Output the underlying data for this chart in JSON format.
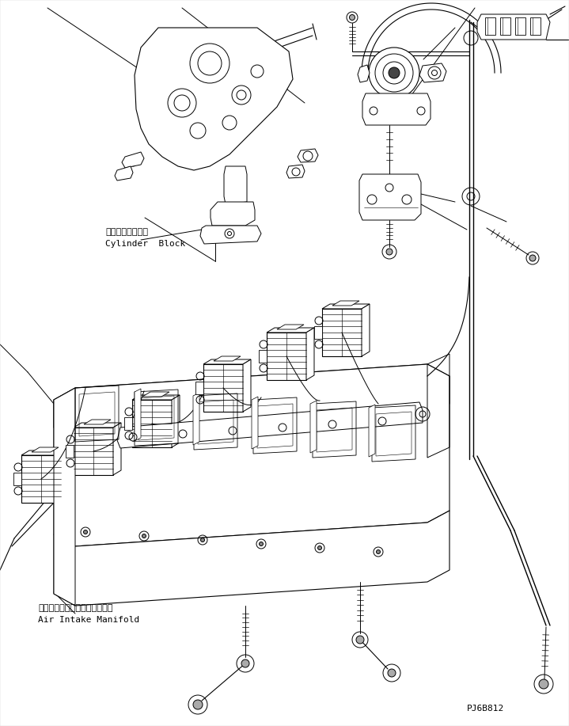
{
  "bg_color": "#ffffff",
  "line_color": "#000000",
  "fig_width": 7.19,
  "fig_height": 9.17,
  "dpi": 100,
  "label1_japanese": "シリンダブロック",
  "label1_english": "Cylinder  Block",
  "label2_japanese": "エアーインテイクマニホルード",
  "label2_english": "Air Intake Manifold",
  "part_number": "PJ6B812"
}
